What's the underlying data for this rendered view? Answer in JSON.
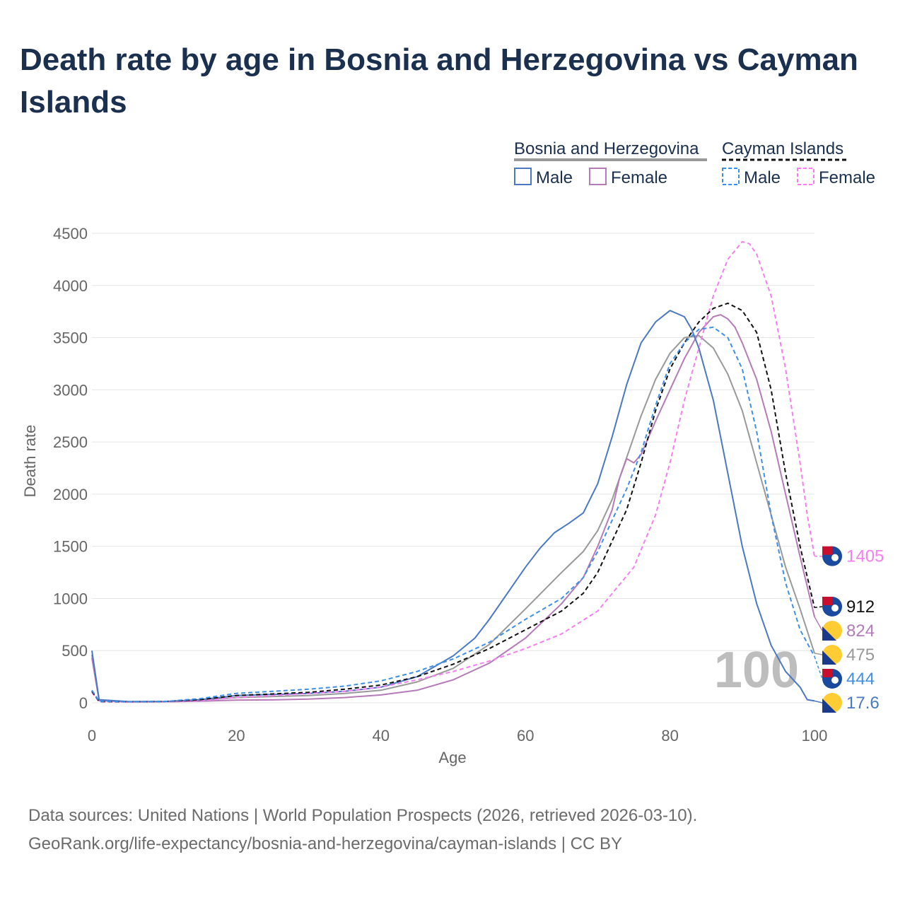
{
  "title": "Death rate by age in Bosnia and Herzegovina vs Cayman Islands",
  "legend": {
    "group1": "Bosnia and Herzegovina",
    "group2": "Cayman Islands",
    "male": "Male",
    "female": "Female"
  },
  "year_label": "100",
  "footer": {
    "line1": "Data sources: United Nations | World Population Prospects (2026, retrieved 2026-03-10).",
    "line2": "GeoRank.org/life-expectancy/bosnia-and-herzegovina/cayman-islands | CC BY"
  },
  "colors": {
    "ba_male": "#4a78c2",
    "ba_female": "#b57ab8",
    "ba_total": "#999999",
    "ky_male": "#3f8fe8",
    "ky_female": "#f57ff0",
    "ky_total": "#111111",
    "grid": "#e6e6e6",
    "title": "#1b2f4f"
  },
  "chart_data": {
    "type": "line",
    "xlabel": "Age",
    "ylabel": "Death rate",
    "xlim": [
      0,
      100
    ],
    "ylim": [
      0,
      4500
    ],
    "xticks": [
      0,
      20,
      40,
      60,
      80,
      100
    ],
    "yticks": [
      0,
      500,
      1000,
      1500,
      2000,
      2500,
      3000,
      3500,
      4000,
      4500
    ],
    "series": [
      {
        "id": "ba_total",
        "name": "Bosnia and Herzegovina (total)",
        "color": "#999999",
        "dashed": false,
        "end_value": 475,
        "end_label": "475",
        "flag": "ba",
        "points": [
          [
            0,
            460
          ],
          [
            1,
            25
          ],
          [
            5,
            10
          ],
          [
            10,
            12
          ],
          [
            15,
            25
          ],
          [
            20,
            50
          ],
          [
            25,
            60
          ],
          [
            30,
            70
          ],
          [
            35,
            90
          ],
          [
            40,
            120
          ],
          [
            45,
            200
          ],
          [
            50,
            330
          ],
          [
            55,
            560
          ],
          [
            60,
            900
          ],
          [
            65,
            1250
          ],
          [
            68,
            1450
          ],
          [
            70,
            1650
          ],
          [
            72,
            1950
          ],
          [
            74,
            2350
          ],
          [
            76,
            2750
          ],
          [
            78,
            3100
          ],
          [
            80,
            3350
          ],
          [
            82,
            3500
          ],
          [
            84,
            3520
          ],
          [
            86,
            3400
          ],
          [
            88,
            3150
          ],
          [
            90,
            2800
          ],
          [
            92,
            2300
          ],
          [
            94,
            1800
          ],
          [
            96,
            1300
          ],
          [
            98,
            900
          ],
          [
            100,
            475
          ]
        ]
      },
      {
        "id": "ba_female",
        "name": "Bosnia and Herzegovina Female",
        "color": "#b57ab8",
        "dashed": false,
        "end_value": 824,
        "end_label": "824",
        "flag": "ba",
        "points": [
          [
            0,
            430
          ],
          [
            1,
            20
          ],
          [
            5,
            8
          ],
          [
            10,
            10
          ],
          [
            15,
            15
          ],
          [
            20,
            25
          ],
          [
            25,
            28
          ],
          [
            30,
            35
          ],
          [
            35,
            50
          ],
          [
            40,
            75
          ],
          [
            45,
            120
          ],
          [
            50,
            220
          ],
          [
            55,
            380
          ],
          [
            60,
            620
          ],
          [
            65,
            950
          ],
          [
            68,
            1200
          ],
          [
            70,
            1500
          ],
          [
            72,
            1850
          ],
          [
            73,
            2150
          ],
          [
            74,
            2340
          ],
          [
            75,
            2300
          ],
          [
            76,
            2380
          ],
          [
            78,
            2700
          ],
          [
            80,
            3000
          ],
          [
            82,
            3300
          ],
          [
            84,
            3550
          ],
          [
            86,
            3700
          ],
          [
            87,
            3720
          ],
          [
            88,
            3680
          ],
          [
            89,
            3600
          ],
          [
            90,
            3450
          ],
          [
            92,
            3100
          ],
          [
            94,
            2600
          ],
          [
            96,
            2000
          ],
          [
            98,
            1400
          ],
          [
            100,
            824
          ]
        ]
      },
      {
        "id": "ba_male",
        "name": "Bosnia and Herzegovina Male",
        "color": "#4a78c2",
        "dashed": false,
        "end_value": 17.6,
        "end_label": "17.6",
        "flag": "ba",
        "points": [
          [
            0,
            500
          ],
          [
            1,
            30
          ],
          [
            5,
            12
          ],
          [
            10,
            12
          ],
          [
            15,
            30
          ],
          [
            20,
            70
          ],
          [
            25,
            80
          ],
          [
            30,
            90
          ],
          [
            35,
            110
          ],
          [
            40,
            150
          ],
          [
            45,
            250
          ],
          [
            50,
            450
          ],
          [
            53,
            620
          ],
          [
            55,
            800
          ],
          [
            58,
            1100
          ],
          [
            60,
            1300
          ],
          [
            62,
            1480
          ],
          [
            64,
            1630
          ],
          [
            66,
            1720
          ],
          [
            68,
            1820
          ],
          [
            70,
            2100
          ],
          [
            72,
            2550
          ],
          [
            74,
            3050
          ],
          [
            76,
            3450
          ],
          [
            78,
            3650
          ],
          [
            80,
            3760
          ],
          [
            82,
            3700
          ],
          [
            83,
            3580
          ],
          [
            84,
            3400
          ],
          [
            86,
            2900
          ],
          [
            88,
            2200
          ],
          [
            90,
            1500
          ],
          [
            92,
            950
          ],
          [
            94,
            550
          ],
          [
            96,
            300
          ],
          [
            98,
            150
          ],
          [
            99,
            30
          ],
          [
            100,
            17.6
          ]
        ]
      },
      {
        "id": "ky_female",
        "name": "Cayman Islands Female",
        "color": "#f57ff0",
        "dashed": true,
        "end_value": 1405,
        "end_label": "1405",
        "flag": "ky",
        "points": [
          [
            0,
            100
          ],
          [
            1,
            10
          ],
          [
            5,
            8
          ],
          [
            10,
            10
          ],
          [
            15,
            20
          ],
          [
            20,
            50
          ],
          [
            25,
            70
          ],
          [
            30,
            90
          ],
          [
            35,
            110
          ],
          [
            40,
            150
          ],
          [
            45,
            220
          ],
          [
            50,
            300
          ],
          [
            55,
            400
          ],
          [
            60,
            520
          ],
          [
            65,
            660
          ],
          [
            70,
            880
          ],
          [
            75,
            1300
          ],
          [
            78,
            1800
          ],
          [
            80,
            2300
          ],
          [
            82,
            2900
          ],
          [
            84,
            3400
          ],
          [
            86,
            3900
          ],
          [
            88,
            4250
          ],
          [
            90,
            4420
          ],
          [
            91,
            4400
          ],
          [
            92,
            4300
          ],
          [
            94,
            3900
          ],
          [
            96,
            3200
          ],
          [
            98,
            2300
          ],
          [
            99,
            1800
          ],
          [
            100,
            1405
          ]
        ]
      },
      {
        "id": "ky_total",
        "name": "Cayman Islands (total)",
        "color": "#111111",
        "dashed": true,
        "end_value": 912,
        "end_label": "912",
        "flag": "ky",
        "points": [
          [
            0,
            110
          ],
          [
            1,
            12
          ],
          [
            5,
            10
          ],
          [
            10,
            12
          ],
          [
            15,
            30
          ],
          [
            20,
            70
          ],
          [
            25,
            85
          ],
          [
            30,
            100
          ],
          [
            35,
            130
          ],
          [
            40,
            170
          ],
          [
            45,
            250
          ],
          [
            50,
            370
          ],
          [
            55,
            520
          ],
          [
            60,
            700
          ],
          [
            65,
            880
          ],
          [
            68,
            1050
          ],
          [
            70,
            1250
          ],
          [
            72,
            1550
          ],
          [
            74,
            1850
          ],
          [
            76,
            2300
          ],
          [
            78,
            2800
          ],
          [
            80,
            3200
          ],
          [
            82,
            3450
          ],
          [
            84,
            3650
          ],
          [
            86,
            3780
          ],
          [
            88,
            3830
          ],
          [
            90,
            3760
          ],
          [
            92,
            3550
          ],
          [
            94,
            3000
          ],
          [
            96,
            2200
          ],
          [
            98,
            1500
          ],
          [
            100,
            912
          ]
        ]
      },
      {
        "id": "ky_male",
        "name": "Cayman Islands Male",
        "color": "#3f8fe8",
        "dashed": true,
        "end_value": 444,
        "end_label": "444",
        "flag": "ky",
        "points": [
          [
            0,
            120
          ],
          [
            1,
            15
          ],
          [
            5,
            10
          ],
          [
            10,
            12
          ],
          [
            15,
            40
          ],
          [
            20,
            90
          ],
          [
            25,
            110
          ],
          [
            30,
            130
          ],
          [
            35,
            160
          ],
          [
            40,
            210
          ],
          [
            45,
            300
          ],
          [
            50,
            420
          ],
          [
            55,
            580
          ],
          [
            60,
            800
          ],
          [
            65,
            1000
          ],
          [
            68,
            1200
          ],
          [
            70,
            1450
          ],
          [
            72,
            1750
          ],
          [
            74,
            2050
          ],
          [
            76,
            2400
          ],
          [
            78,
            2850
          ],
          [
            80,
            3250
          ],
          [
            82,
            3450
          ],
          [
            84,
            3580
          ],
          [
            86,
            3600
          ],
          [
            88,
            3500
          ],
          [
            90,
            3200
          ],
          [
            92,
            2600
          ],
          [
            94,
            1800
          ],
          [
            96,
            1150
          ],
          [
            98,
            700
          ],
          [
            100,
            444
          ]
        ]
      }
    ]
  }
}
